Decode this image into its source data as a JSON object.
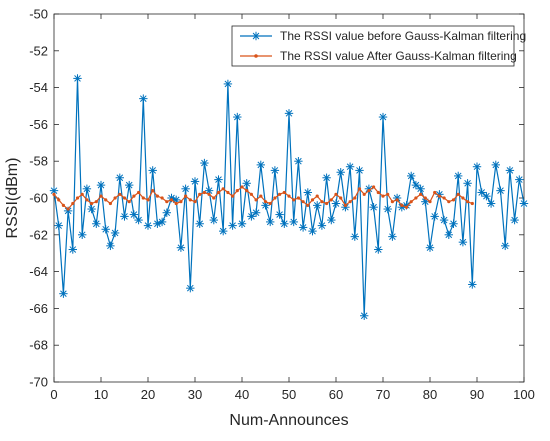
{
  "chart_data": {
    "type": "line",
    "title": "",
    "xlabel": "Num-Announces",
    "ylabel": "RSSI(dBm)",
    "xlim": [
      0,
      100
    ],
    "ylim": [
      -70,
      -50
    ],
    "xticks": [
      0,
      10,
      20,
      30,
      40,
      50,
      60,
      70,
      80,
      90,
      100
    ],
    "yticks": [
      -70,
      -68,
      -66,
      -64,
      -62,
      -60,
      -58,
      -56,
      -54,
      -52,
      -50
    ],
    "grid": false,
    "legend_position": "top-right",
    "series": [
      {
        "name": "The RSSI value before Gauss-Kalman filtering",
        "color": "#0072BD",
        "marker": "asterisk",
        "x": [
          0,
          1,
          2,
          3,
          4,
          5,
          6,
          7,
          8,
          9,
          10,
          11,
          12,
          13,
          14,
          15,
          16,
          17,
          18,
          19,
          20,
          21,
          22,
          23,
          24,
          25,
          26,
          27,
          28,
          29,
          30,
          31,
          32,
          33,
          34,
          35,
          36,
          37,
          38,
          39,
          40,
          41,
          42,
          43,
          44,
          45,
          46,
          47,
          48,
          49,
          50,
          51,
          52,
          53,
          54,
          55,
          56,
          57,
          58,
          59,
          60,
          61,
          62,
          63,
          64,
          65,
          66,
          67,
          68,
          69,
          70,
          71,
          72,
          73,
          74,
          75,
          76,
          77,
          78,
          79,
          80,
          81,
          82,
          83,
          84,
          85,
          86,
          87,
          88,
          89,
          90,
          91,
          92,
          93,
          94,
          95,
          96,
          97,
          98,
          99,
          100
        ],
        "y": [
          -59.6,
          -61.5,
          -65.2,
          -60.7,
          -62.8,
          -53.5,
          -62.0,
          -59.5,
          -60.6,
          -61.4,
          -59.3,
          -61.7,
          -62.6,
          -61.9,
          -58.9,
          -61.0,
          -59.3,
          -60.9,
          -61.2,
          -54.6,
          -61.5,
          -58.5,
          -61.4,
          -61.3,
          -60.8,
          -60.0,
          -60.1,
          -62.7,
          -59.5,
          -64.9,
          -59.1,
          -61.4,
          -58.1,
          -59.6,
          -61.2,
          -59.0,
          -61.8,
          -53.8,
          -61.5,
          -55.6,
          -61.4,
          -59.2,
          -61.0,
          -60.8,
          -58.2,
          -60.4,
          -61.3,
          -58.5,
          -60.9,
          -61.4,
          -55.4,
          -61.3,
          -58.0,
          -61.6,
          -59.7,
          -61.8,
          -60.4,
          -61.5,
          -58.9,
          -61.2,
          -60.3,
          -58.6,
          -60.5,
          -58.3,
          -62.1,
          -58.5,
          -66.4,
          -59.5,
          -60.5,
          -62.8,
          -55.6,
          -60.6,
          -62.1,
          -60.0,
          -60.5,
          -60.4,
          -58.8,
          -59.3,
          -59.5,
          -60.2,
          -62.7,
          -61.0,
          -59.8,
          -61.2,
          -62.0,
          -61.4,
          -58.8,
          -62.4,
          -59.2,
          -64.7,
          -58.3,
          -59.7,
          -59.9,
          -60.3,
          -58.2,
          -59.6,
          -62.6,
          -58.5,
          -61.2,
          -59.0,
          -60.3
        ]
      },
      {
        "name": "The RSSI value After Gauss-Kalman filtering",
        "color": "#D95319",
        "marker": "dot",
        "x": [
          0,
          1,
          2,
          3,
          4,
          5,
          6,
          7,
          8,
          9,
          10,
          11,
          12,
          13,
          14,
          15,
          16,
          17,
          18,
          19,
          20,
          21,
          22,
          23,
          24,
          25,
          26,
          27,
          28,
          29,
          30,
          31,
          32,
          33,
          34,
          35,
          36,
          37,
          38,
          39,
          40,
          41,
          42,
          43,
          44,
          45,
          46,
          47,
          48,
          49,
          50,
          51,
          52,
          53,
          54,
          55,
          56,
          57,
          58,
          59,
          60,
          61,
          62,
          63,
          64,
          65,
          66,
          67,
          68,
          69,
          70,
          71,
          72,
          73,
          74,
          75,
          76,
          77,
          78,
          79,
          80,
          81,
          82,
          83,
          84,
          85,
          86,
          87,
          88,
          89
        ],
        "y": [
          -59.8,
          -60.1,
          -60.4,
          -60.6,
          -60.3,
          -60.0,
          -59.8,
          -60.1,
          -60.3,
          -60.2,
          -59.9,
          -60.1,
          -60.3,
          -60.0,
          -59.8,
          -60.0,
          -60.2,
          -59.9,
          -59.7,
          -60.0,
          -60.1,
          -59.6,
          -59.9,
          -60.0,
          -60.2,
          -60.1,
          -60.3,
          -60.2,
          -59.9,
          -60.1,
          -60.2,
          -59.8,
          -59.7,
          -59.8,
          -60.0,
          -59.7,
          -59.5,
          -59.7,
          -59.9,
          -59.6,
          -59.4,
          -59.6,
          -59.8,
          -60.1,
          -59.9,
          -60.2,
          -60.3,
          -60.0,
          -59.8,
          -59.7,
          -59.9,
          -60.1,
          -60.0,
          -60.2,
          -60.4,
          -60.1,
          -59.9,
          -60.2,
          -60.3,
          -60.1,
          -59.8,
          -60.0,
          -60.4,
          -60.2,
          -60.0,
          -59.5,
          -59.8,
          -59.6,
          -59.4,
          -59.7,
          -59.9,
          -59.8,
          -60.2,
          -60.1,
          -60.4,
          -60.5,
          -60.2,
          -60.0,
          -59.8,
          -60.0,
          -60.2,
          -59.7,
          -59.9,
          -60.0,
          -60.2,
          -60.1,
          -59.8,
          -60.0,
          -60.2,
          -60.3
        ]
      }
    ]
  }
}
